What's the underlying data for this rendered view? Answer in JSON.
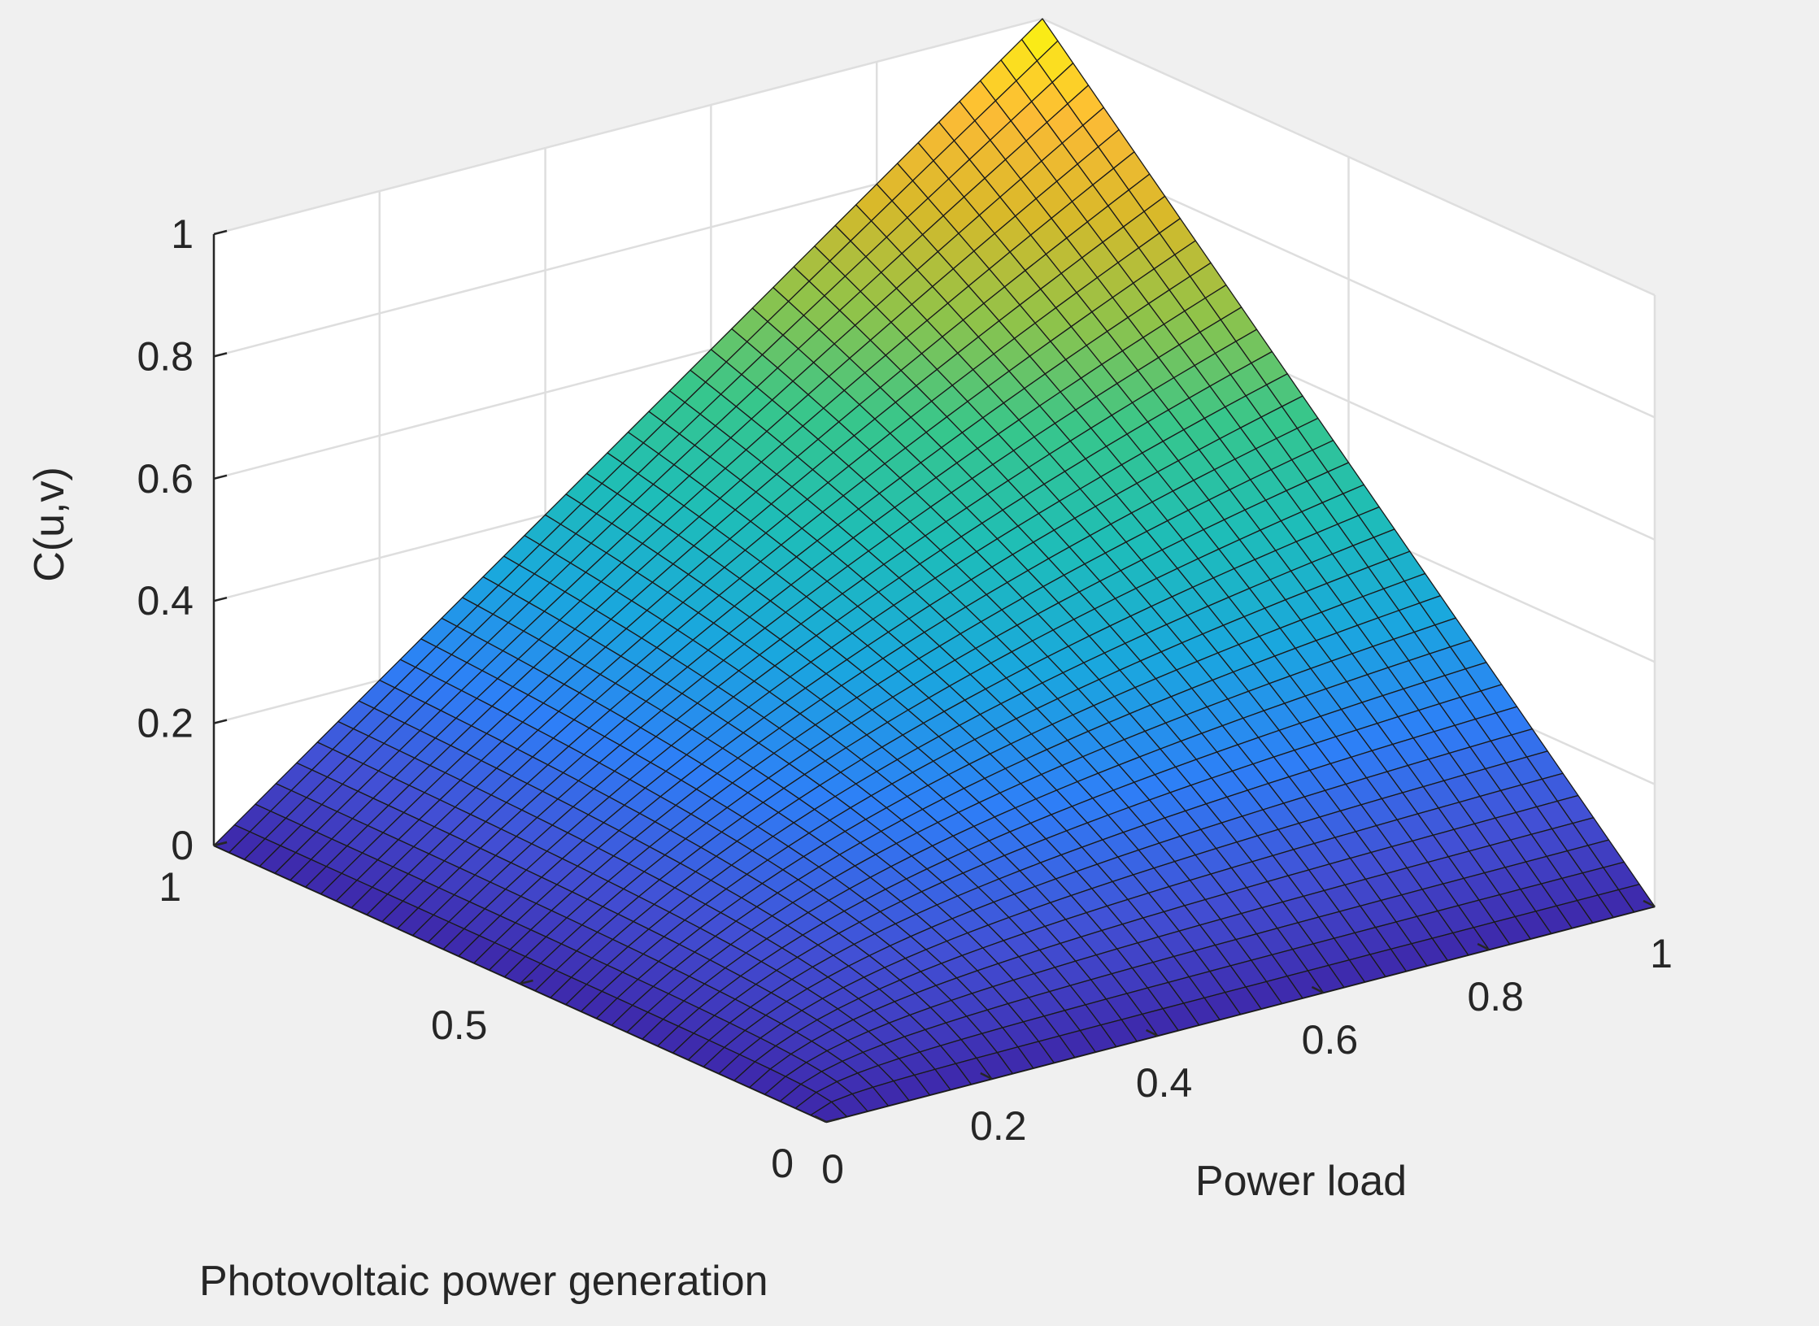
{
  "chart_data": {
    "type": "surface",
    "title": "",
    "xlabel": "Power load",
    "ylabel": "Photovoltaic power generation",
    "zlabel": "C(u,v)",
    "xlim": [
      0,
      1
    ],
    "ylim": [
      0,
      1
    ],
    "zlim": [
      0,
      1
    ],
    "x_ticks": [
      "0",
      "0.2",
      "0.4",
      "0.6",
      "0.8",
      "1"
    ],
    "y_ticks": [
      "0",
      "0.5",
      "1"
    ],
    "z_ticks": [
      "0",
      "0.2",
      "0.4",
      "0.6",
      "0.8",
      "1"
    ],
    "grid": true,
    "colormap": "parula",
    "colormap_colors": [
      "#3e26a8",
      "#4250d5",
      "#2e7ff7",
      "#1aa7de",
      "#1ebdb8",
      "#37c68c",
      "#8fc34a",
      "#d8b92a",
      "#fdbb36",
      "#f9f90e"
    ],
    "mesh_lines": 40,
    "surface_function": "C(u,v) = u*v/(u+v-u*v)  (Ali-Mikhail-Haq copula, theta = 1)"
  }
}
